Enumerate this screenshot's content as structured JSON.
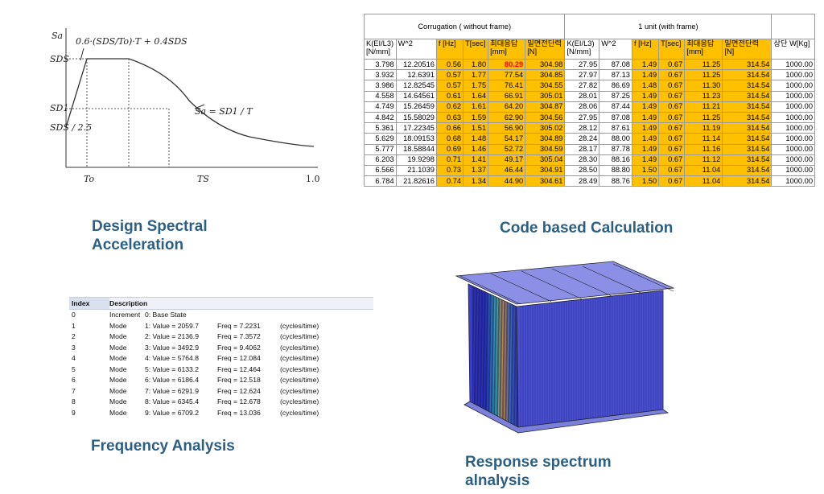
{
  "captions": {
    "spectral": [
      "Design Spectral",
      "Acceleration"
    ],
    "code": "Code based Calculation",
    "frequency": "Frequency Analysis",
    "response": [
      "Response spectrum",
      "alnalysis"
    ]
  },
  "spectrum_figure": {
    "eq_top": "0.6·(SDS/To)·T + 0.4SDS",
    "eq_curve": "Sa = SD1 / T",
    "axis_labels": {
      "sa": "Sa",
      "sds": "SDS",
      "sd1": "SD1",
      "sds25": "SDS / 2.5",
      "to": "To",
      "ts": "TS",
      "one": "1.0"
    }
  },
  "code_table": {
    "group1": "Corrugation ( without frame)",
    "group2": "1 unit  (with  frame)",
    "headers": [
      "K(EI/L3) [N/mm]",
      "W^2",
      "f [Hz]",
      "T[sec]",
      "최대응답 [mm]",
      "밑면전단력 [N]",
      "K(EI/L3) [N/mm]",
      "W^2",
      "f [Hz]",
      "T[sec]",
      "최대응답 [mm]",
      "밑면전단력 [N]",
      "상단 W[Kg]"
    ],
    "rows": [
      [
        "3.798",
        "12.20516",
        "0.56",
        "1.80",
        "80.29",
        "304.98",
        "27.95",
        "87.08",
        "1.49",
        "0.67",
        "11.25",
        "314.54",
        "1000.00"
      ],
      [
        "3.932",
        "12.6391",
        "0.57",
        "1.77",
        "77.54",
        "304.85",
        "27.97",
        "87.13",
        "1.49",
        "0.67",
        "11.25",
        "314.54",
        "1000.00"
      ],
      [
        "3.986",
        "12.82545",
        "0.57",
        "1.75",
        "76.41",
        "304.55",
        "27.82",
        "86.69",
        "1.48",
        "0.67",
        "11.30",
        "314.54",
        "1000.00"
      ],
      [
        "4.558",
        "14.64561",
        "0.61",
        "1.64",
        "66.91",
        "305.01",
        "28.01",
        "87.25",
        "1.49",
        "0.67",
        "11.23",
        "314.54",
        "1000.00"
      ],
      [
        "4.749",
        "15.26459",
        "0.62",
        "1.61",
        "64.20",
        "304.87",
        "28.06",
        "87.44",
        "1.49",
        "0.67",
        "11.21",
        "314.54",
        "1000.00"
      ],
      [
        "4.842",
        "15.58029",
        "0.63",
        "1.59",
        "62.90",
        "304.56",
        "27.95",
        "87.08",
        "1.49",
        "0.67",
        "11.25",
        "314.54",
        "1000.00"
      ],
      [
        "5.361",
        "17.22345",
        "0.66",
        "1.51",
        "56.90",
        "305.02",
        "28.12",
        "87.61",
        "1.49",
        "0.67",
        "11.19",
        "314.54",
        "1000.00"
      ],
      [
        "5.629",
        "18.09153",
        "0.68",
        "1.48",
        "54.17",
        "304.89",
        "28.24",
        "88.00",
        "1.49",
        "0.67",
        "11.14",
        "314.54",
        "1000.00"
      ],
      [
        "5.777",
        "18.58844",
        "0.69",
        "1.46",
        "52.72",
        "304.59",
        "28.17",
        "87.78",
        "1.49",
        "0.67",
        "11.16",
        "314.54",
        "1000.00"
      ],
      [
        "6.203",
        "19.9298",
        "0.71",
        "1.41",
        "49.17",
        "305.04",
        "28.30",
        "88.16",
        "1.49",
        "0.67",
        "11.12",
        "314.54",
        "1000.00"
      ],
      [
        "6.566",
        "21.1039",
        "0.73",
        "1.37",
        "46.44",
        "304.91",
        "28.50",
        "88.80",
        "1.50",
        "0.67",
        "11.04",
        "314.54",
        "1000.00"
      ],
      [
        "6.784",
        "21.82616",
        "0.74",
        "1.34",
        "44.90",
        "304.61",
        "28.49",
        "88.76",
        "1.50",
        "0.67",
        "11.04",
        "314.54",
        "1000.00"
      ]
    ],
    "highlight_color": "#ffc000"
  },
  "freq_table": {
    "headers": [
      "Index",
      "Description"
    ],
    "rows": [
      [
        "0",
        "Increment",
        "0: Base State",
        "",
        ""
      ],
      [
        "1",
        "Mode",
        "1: Value =  2059.7",
        "Freq =  7.2231",
        "(cycles/time)"
      ],
      [
        "2",
        "Mode",
        "2: Value =  2136.9",
        "Freq =  7.3572",
        "(cycles/time)"
      ],
      [
        "3",
        "Mode",
        "3: Value =  3492.9",
        "Freq =  9.4062",
        "(cycles/time)"
      ],
      [
        "4",
        "Mode",
        "4: Value =  5764.8",
        "Freq =  12.084",
        "(cycles/time)"
      ],
      [
        "5",
        "Mode",
        "5: Value =  6133.2",
        "Freq =  12.464",
        "(cycles/time)"
      ],
      [
        "6",
        "Mode",
        "6: Value =  6186.4",
        "Freq =  12.518",
        "(cycles/time)"
      ],
      [
        "7",
        "Mode",
        "7: Value =  6291.9",
        "Freq =  12.624",
        "(cycles/time)"
      ],
      [
        "8",
        "Mode",
        "8: Value =  6345.4",
        "Freq =  12.678",
        "(cycles/time)"
      ],
      [
        "9",
        "Mode",
        "9: Value =  6709.2",
        "Freq =  13.036",
        "(cycles/time)"
      ]
    ]
  },
  "colors": {
    "caption": "#2b5f84",
    "model_blue": "#3a3fc9"
  }
}
